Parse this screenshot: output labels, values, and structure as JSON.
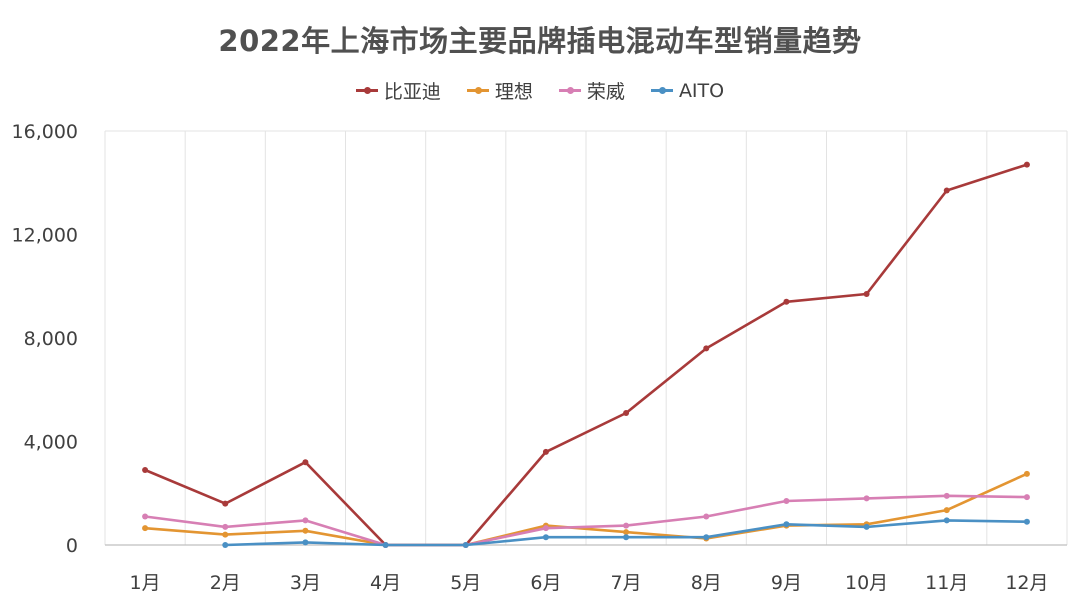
{
  "chart_data": {
    "type": "line",
    "title": "2022年上海市场主要品牌插电混动车型销量趋势",
    "categories": [
      "1月",
      "2月",
      "3月",
      "4月",
      "5月",
      "6月",
      "7月",
      "8月",
      "9月",
      "10月",
      "11月",
      "12月"
    ],
    "ylim": [
      0,
      16000
    ],
    "yticks": [
      0,
      4000,
      8000,
      12000,
      16000
    ],
    "ytick_labels": [
      "0",
      "4,000",
      "8,000",
      "12,000",
      "16,000"
    ],
    "grid": "vertical",
    "legend_position": "top-center",
    "series": [
      {
        "name": "比亚迪",
        "color": "#a83a3a",
        "values": [
          2900,
          1600,
          3200,
          0,
          0,
          3600,
          5100,
          7600,
          9400,
          9700,
          13700,
          14700
        ]
      },
      {
        "name": "理想",
        "color": "#e39532",
        "values": [
          650,
          400,
          550,
          0,
          0,
          750,
          500,
          250,
          750,
          800,
          1350,
          2750
        ]
      },
      {
        "name": "荣威",
        "color": "#d77fb4",
        "values": [
          1100,
          700,
          950,
          0,
          0,
          650,
          750,
          1100,
          1700,
          1800,
          1900,
          1850
        ]
      },
      {
        "name": "AITO",
        "color": "#4a90c4",
        "values": [
          null,
          0,
          100,
          0,
          0,
          300,
          300,
          300,
          800,
          700,
          950,
          900
        ]
      }
    ]
  }
}
